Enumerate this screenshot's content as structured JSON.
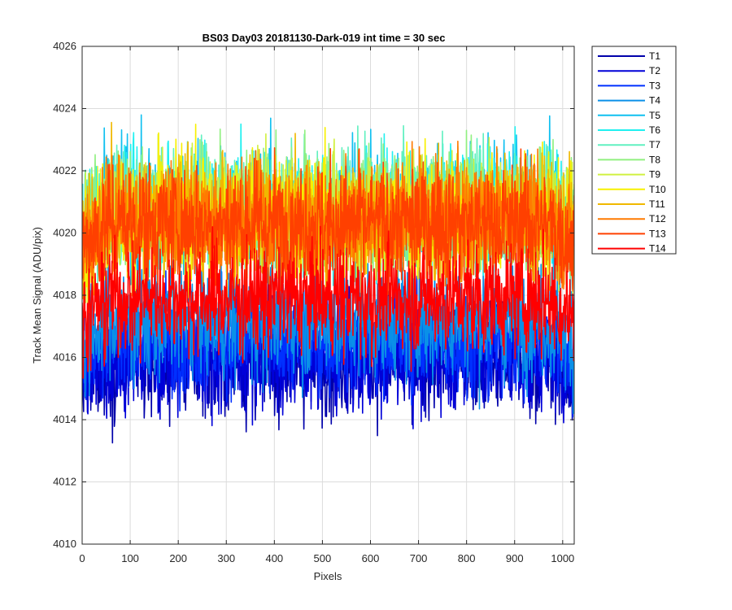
{
  "chart_data": {
    "type": "line",
    "title": "BS03 Day03 20181130-Dark-019 int time = 30 sec",
    "xlabel": "Pixels",
    "ylabel": "Track Mean Signal (ADU/pix)",
    "xlim": [
      0,
      1024
    ],
    "ylim": [
      4010,
      4026
    ],
    "xticks": [
      0,
      100,
      200,
      300,
      400,
      500,
      600,
      700,
      800,
      900,
      1000
    ],
    "yticks": [
      4010,
      4012,
      4014,
      4016,
      4018,
      4020,
      4022,
      4024,
      4026
    ],
    "grid": true,
    "legend_position": "outside-top-right",
    "num_points": 1024,
    "series": [
      {
        "name": "T1",
        "color": "#0000aa",
        "mean": 4015.9,
        "noise": 0.85
      },
      {
        "name": "T2",
        "color": "#0000d8",
        "mean": 4016.0,
        "noise": 0.85
      },
      {
        "name": "T3",
        "color": "#0030ff",
        "mean": 4016.6,
        "noise": 0.85
      },
      {
        "name": "T4",
        "color": "#0a90e8",
        "mean": 4017.2,
        "noise": 0.9
      },
      {
        "name": "T5",
        "color": "#10c0f0",
        "mean": 4020.8,
        "noise": 0.95
      },
      {
        "name": "T6",
        "color": "#20f0f0",
        "mean": 4020.8,
        "noise": 0.95
      },
      {
        "name": "T7",
        "color": "#60f0c0",
        "mean": 4020.9,
        "noise": 0.95
      },
      {
        "name": "T8",
        "color": "#90f080",
        "mean": 4020.9,
        "noise": 0.95
      },
      {
        "name": "T9",
        "color": "#d0f040",
        "mean": 4020.6,
        "noise": 0.95
      },
      {
        "name": "T10",
        "color": "#f8f000",
        "mean": 4020.5,
        "noise": 0.95
      },
      {
        "name": "T11",
        "color": "#f0b800",
        "mean": 4020.5,
        "noise": 0.95
      },
      {
        "name": "T12",
        "color": "#ff7a00",
        "mean": 4020.4,
        "noise": 0.95
      },
      {
        "name": "T13",
        "color": "#ff4000",
        "mean": 4020.3,
        "noise": 0.95
      },
      {
        "name": "T14",
        "color": "#ff0000",
        "mean": 4017.9,
        "noise": 0.85
      }
    ]
  }
}
